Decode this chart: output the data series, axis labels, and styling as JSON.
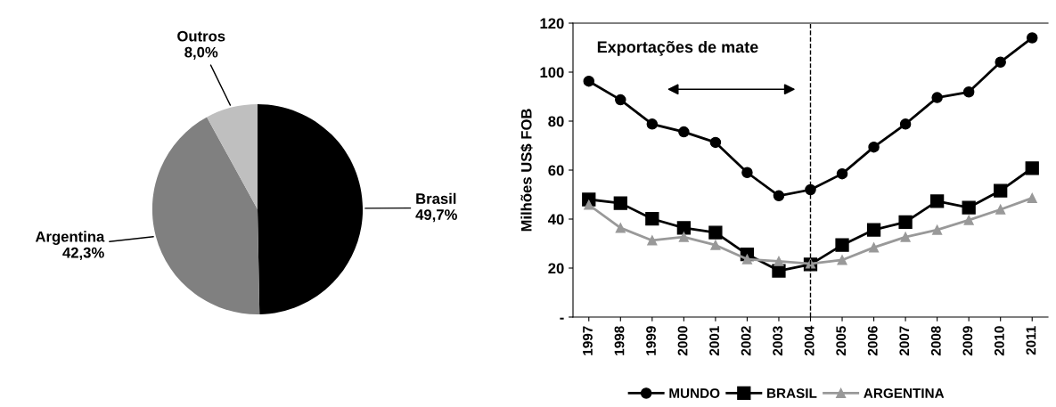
{
  "chart_data": [
    {
      "type": "pie",
      "categories": [
        "Brasil",
        "Argentina",
        "Outros"
      ],
      "values": [
        49.7,
        42.3,
        8.0
      ],
      "colors": [
        "#000000",
        "#808080",
        "#bfbfbf"
      ],
      "value_labels": [
        "49,7%",
        "42,3%",
        "8,0%"
      ]
    },
    {
      "type": "line",
      "ylabel": "Milhões US$ FOB",
      "annotations": [
        "Exportações de mate"
      ],
      "categories": [
        "1997",
        "1998",
        "1999",
        "2000",
        "2001",
        "2002",
        "2003",
        "2004",
        "2005",
        "2006",
        "2007",
        "2008",
        "2009",
        "2010",
        "2011"
      ],
      "series": [
        {
          "name": "MUNDO",
          "color": "#000000",
          "marker": "circle",
          "values": [
            96.3,
            88.7,
            78.8,
            75.6,
            71.3,
            59,
            49.5,
            52,
            58.5,
            69.4,
            78.8,
            89.6,
            91.9,
            104.1,
            114
          ]
        },
        {
          "name": "BRASIL",
          "color": "#000000",
          "marker": "square",
          "values": [
            48,
            46.5,
            40.1,
            36.4,
            34.5,
            25.6,
            18.9,
            21.5,
            29.4,
            35.6,
            38.8,
            47.3,
            44.7,
            51.6,
            60.8
          ]
        },
        {
          "name": "ARGENTINA",
          "color": "#999999",
          "marker": "triangle",
          "values": [
            45.8,
            36.4,
            31.3,
            32.7,
            29.4,
            23.6,
            22.8,
            21.8,
            23.3,
            28.4,
            32.7,
            35.6,
            39.6,
            43.9,
            48.6
          ]
        }
      ],
      "ylim": [
        0,
        120
      ],
      "yticks": [
        {
          "value": 0,
          "label": "-"
        },
        20,
        40,
        60,
        80,
        100,
        120
      ],
      "ref_lines": [
        {
          "axis": "x",
          "value": "2004",
          "line_style": "dashed",
          "color": "#000000"
        }
      ],
      "grid": false,
      "legend": "bottom",
      "line_style": "solid"
    }
  ]
}
